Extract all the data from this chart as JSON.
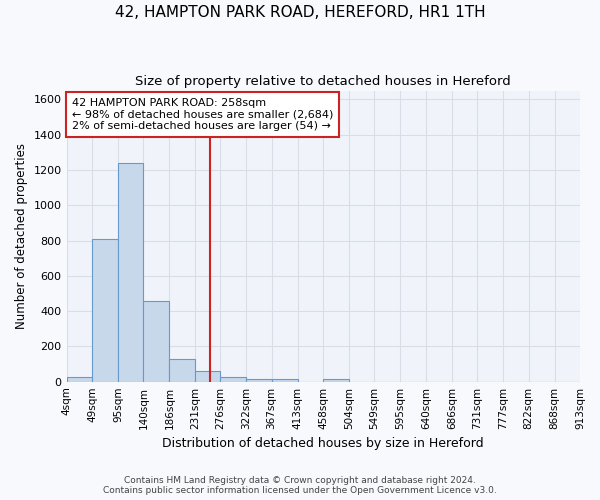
{
  "title1": "42, HAMPTON PARK ROAD, HEREFORD, HR1 1TH",
  "title2": "Size of property relative to detached houses in Hereford",
  "xlabel": "Distribution of detached houses by size in Hereford",
  "ylabel": "Number of detached properties",
  "bin_edges": [
    4,
    49,
    95,
    140,
    186,
    231,
    276,
    322,
    367,
    413,
    458,
    504,
    549,
    595,
    640,
    686,
    731,
    777,
    822,
    868,
    913
  ],
  "bar_heights": [
    25,
    810,
    1240,
    455,
    130,
    60,
    25,
    15,
    15,
    0,
    15,
    0,
    0,
    0,
    0,
    0,
    0,
    0,
    0,
    0
  ],
  "bar_color": "#c8d8eb",
  "bar_edge_color": "#6699cc",
  "red_line_x": 258,
  "ylim": [
    0,
    1650
  ],
  "yticks": [
    0,
    200,
    400,
    600,
    800,
    1000,
    1200,
    1400,
    1600
  ],
  "annotation_line1": "42 HAMPTON PARK ROAD: 258sqm",
  "annotation_line2": "← 98% of detached houses are smaller (2,684)",
  "annotation_line3": "2% of semi-detached houses are larger (54) →",
  "annotation_box_color": "#ffffff",
  "annotation_box_edge_color": "#cc2222",
  "footer_line1": "Contains HM Land Registry data © Crown copyright and database right 2024.",
  "footer_line2": "Contains public sector information licensed under the Open Government Licence v3.0.",
  "background_color": "#f7f9fc",
  "plot_bg_color": "#f0f4fa",
  "grid_color": "#d8dde8",
  "title1_fontsize": 11,
  "title2_fontsize": 9.5
}
